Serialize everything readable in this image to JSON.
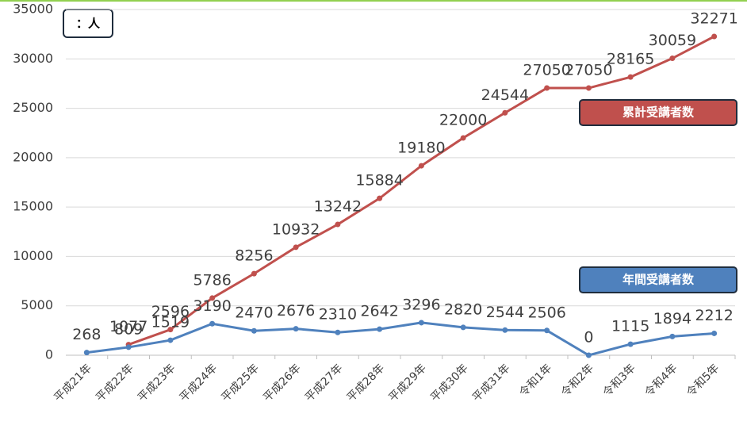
{
  "chart_data": {
    "type": "line",
    "unit_label": "：人",
    "categories": [
      "平成21年",
      "平成22年",
      "平成23年",
      "平成24年",
      "平成25年",
      "平成26年",
      "平成27年",
      "平成28年",
      "平成29年",
      "平成30年",
      "平成31年",
      "令和1年",
      "令和2年",
      "令和3年",
      "令和4年",
      "令和5年"
    ],
    "series": [
      {
        "name": "累計受講者数",
        "color": "#c0504d",
        "values": [
          null,
          1077,
          2596,
          5786,
          8256,
          10932,
          13242,
          15884,
          19180,
          22000,
          24544,
          27050,
          27050,
          28165,
          30059,
          32271
        ]
      },
      {
        "name": "年間受講者数",
        "color": "#4f81bd",
        "values": [
          268,
          809,
          1519,
          3190,
          2470,
          2676,
          2310,
          2642,
          3296,
          2820,
          2544,
          2506,
          0,
          1115,
          1894,
          2212
        ]
      }
    ],
    "ylim": [
      0,
      35000
    ],
    "yticks": [
      0,
      5000,
      10000,
      15000,
      20000,
      25000,
      30000,
      35000
    ],
    "grid": true
  }
}
